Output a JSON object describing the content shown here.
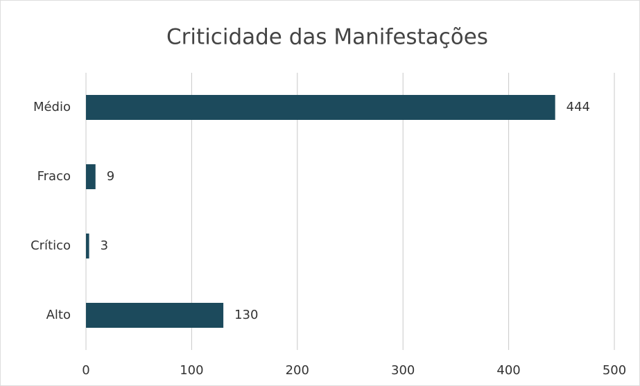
{
  "chart_data": {
    "type": "bar",
    "orientation": "horizontal",
    "title": "Criticidade das Manifestações",
    "categories": [
      "Médio",
      "Fraco",
      "Crítico",
      "Alto"
    ],
    "values": [
      444,
      9,
      3,
      130
    ],
    "color": "#1c4a5c",
    "xlim": [
      0,
      500
    ],
    "xticks": [
      0,
      100,
      200,
      300,
      400,
      500
    ],
    "grid": true
  }
}
